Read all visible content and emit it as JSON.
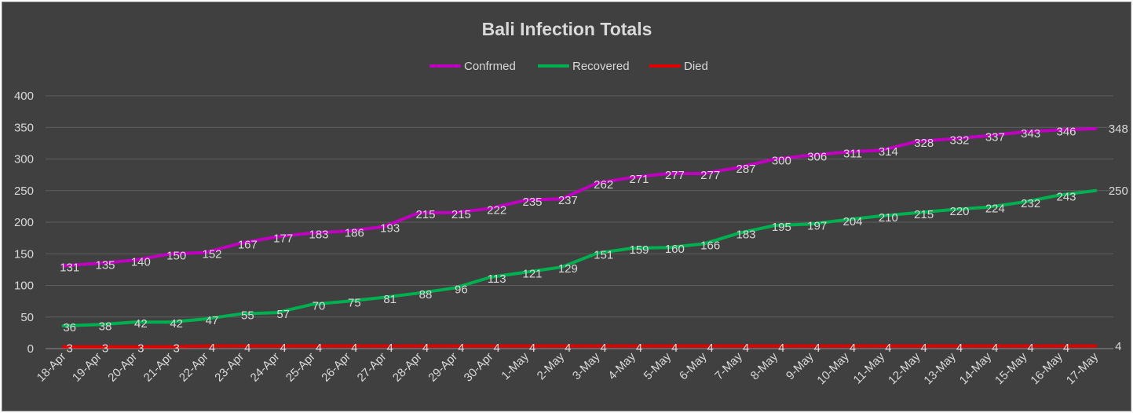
{
  "chart_data": {
    "type": "line",
    "title": "Bali Infection Totals",
    "categories": [
      "18-Apr",
      "19-Apr",
      "20-Apr",
      "21-Apr",
      "22-Apr",
      "23-Apr",
      "24-Apr",
      "25-Apr",
      "26-Apr",
      "27-Apr",
      "28-Apr",
      "29-Apr",
      "30-Apr",
      "1-May",
      "2-May",
      "3-May",
      "4-May",
      "5-May",
      "6-May",
      "7-May",
      "8-May",
      "9-May",
      "10-May",
      "11-May",
      "12-May",
      "13-May",
      "14-May",
      "15-May",
      "16-May",
      "17-May"
    ],
    "ylim": [
      0,
      400
    ],
    "yticks": [
      "0",
      "50",
      "100",
      "150",
      "200",
      "250",
      "300",
      "350",
      "400"
    ],
    "grid": true,
    "legend_position": "top",
    "series": [
      {
        "name": "Confrmed",
        "color": "#c000c0",
        "values": [
          131,
          135,
          140,
          150,
          152,
          167,
          177,
          183,
          186,
          193,
          215,
          215,
          222,
          235,
          237,
          262,
          271,
          277,
          277,
          287,
          300,
          306,
          311,
          314,
          328,
          332,
          337,
          343,
          346,
          348
        ]
      },
      {
        "name": "Recovered",
        "color": "#00b050",
        "values": [
          36,
          38,
          42,
          42,
          47,
          55,
          57,
          70,
          75,
          81,
          88,
          96,
          113,
          121,
          129,
          151,
          159,
          160,
          166,
          183,
          195,
          197,
          204,
          210,
          215,
          220,
          224,
          232,
          243,
          250
        ]
      },
      {
        "name": "Died",
        "color": "#e00000",
        "values": [
          3,
          3,
          3,
          3,
          4,
          4,
          4,
          4,
          4,
          4,
          4,
          4,
          4,
          4,
          4,
          4,
          4,
          4,
          4,
          4,
          4,
          4,
          4,
          4,
          4,
          4,
          4,
          4,
          4,
          4
        ]
      }
    ]
  }
}
